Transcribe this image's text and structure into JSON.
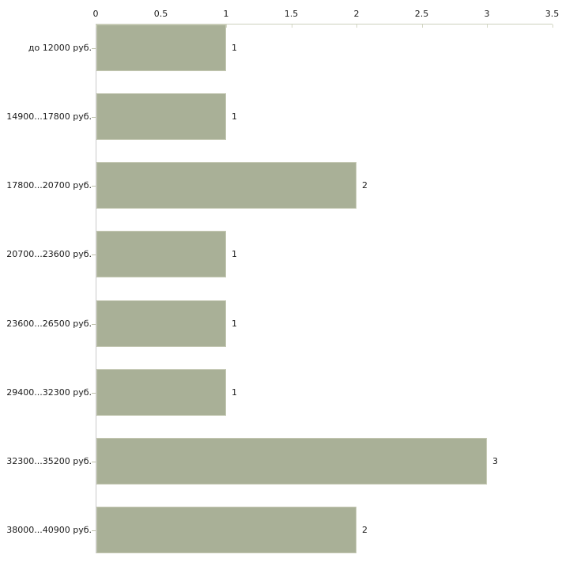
{
  "chart_data": {
    "type": "bar",
    "orientation": "horizontal",
    "title": "",
    "xlabel": "",
    "ylabel": "",
    "categories": [
      "до 12000 руб.",
      "14900...17800 руб.",
      "17800...20700 руб.",
      "20700...23600 руб.",
      "23600...26500 руб.",
      "29400...32300 руб.",
      "32300...35200 руб.",
      "38000...40900 руб."
    ],
    "values": [
      1,
      1,
      2,
      1,
      1,
      1,
      3,
      2
    ],
    "value_labels": [
      "1",
      "1",
      "2",
      "1",
      "1",
      "1",
      "3",
      "2"
    ],
    "x_ticks": [
      0,
      0.5,
      1,
      1.5,
      2,
      2.5,
      3,
      3.5
    ],
    "x_tick_labels": [
      "0",
      "0.5",
      "1",
      "1.5",
      "2",
      "2.5",
      "3",
      "3.5"
    ],
    "xlim": [
      0,
      3.5
    ],
    "axis_position": "top",
    "grid": false,
    "legend": false,
    "colors": {
      "bar_fill": "#a9b097",
      "bar_border": "#c4c8b3",
      "h_axis_line": "#cdd1bd",
      "h_axis_tick": "#d3d6c4",
      "v_axis_line": "#c9c9c9",
      "category_tick": "#bfc2ad",
      "text": "#1a1a1a",
      "background": "#ffffff"
    }
  }
}
